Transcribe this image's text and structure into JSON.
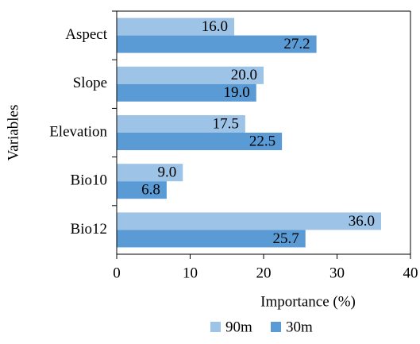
{
  "chart_data": {
    "type": "bar",
    "orientation": "horizontal",
    "xlabel": "Importance (%)",
    "ylabel": "Variables",
    "categories": [
      "Aspect",
      "Slope",
      "Elevation",
      "Bio10",
      "Bio12"
    ],
    "series": [
      {
        "name": "90m",
        "color": "#9dc3e6",
        "values": [
          16.0,
          20.0,
          17.5,
          9.0,
          36.0
        ],
        "value_labels": [
          "16.0",
          "20.0",
          "17.5",
          "9.0",
          "36.0"
        ]
      },
      {
        "name": "30m",
        "color": "#5b9bd5",
        "values": [
          27.2,
          19.0,
          22.5,
          6.8,
          25.7
        ],
        "value_labels": [
          "27.2",
          "19.0",
          "22.5",
          "6.8",
          "25.7"
        ]
      }
    ],
    "xlim": [
      0,
      40
    ],
    "xticks": [
      0,
      10,
      20,
      30,
      40
    ],
    "legend": "bottom"
  }
}
